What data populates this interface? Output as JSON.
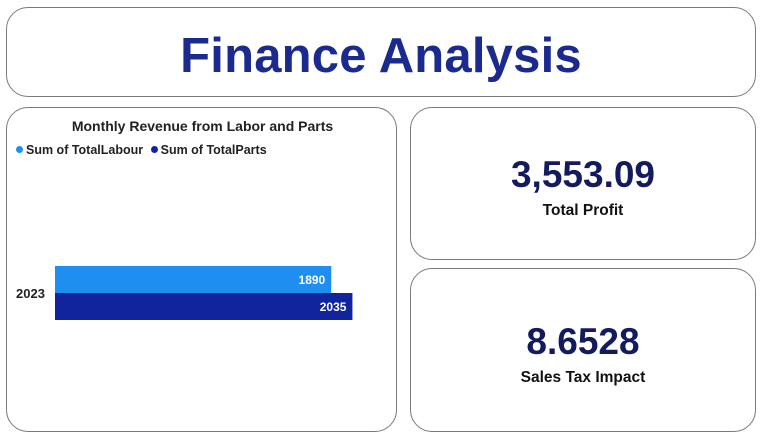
{
  "header": {
    "title": "Finance Analysis"
  },
  "chart_data": {
    "type": "bar",
    "orientation": "horizontal",
    "title": "Monthly Revenue from Labor and Parts",
    "categories": [
      "2023"
    ],
    "series": [
      {
        "name": "Sum of TotalLabour",
        "values": [
          1890
        ],
        "color": "#1f8ef1"
      },
      {
        "name": "Sum of TotalParts",
        "values": [
          2035
        ],
        "color": "#12239e"
      }
    ],
    "xlim": [
      0,
      2600
    ],
    "legend_position": "top-left",
    "grid": false,
    "data_labels": true
  },
  "kpis": {
    "total_profit": {
      "value": "3,553.09",
      "label": "Total Profit"
    },
    "sales_tax_impact": {
      "value": "8.6528",
      "label": "Sales Tax Impact"
    }
  }
}
